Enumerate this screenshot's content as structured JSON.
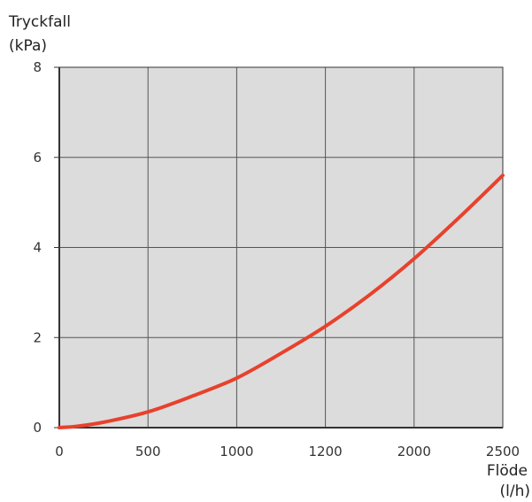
{
  "chart_data": {
    "type": "line",
    "ylabel_lines": [
      "Tryckfall",
      "(kPa)"
    ],
    "xlabel_lines": [
      "Flöde",
      "(l/h)"
    ],
    "x_tick_labels": [
      "0",
      "500",
      "1000",
      "1200",
      "2000",
      "2500"
    ],
    "y_ticks": [
      0,
      2,
      4,
      6,
      8
    ],
    "xlim": [
      0,
      2500
    ],
    "ylim": [
      0,
      8
    ],
    "grid": true,
    "colors": {
      "plot_background": "#dcdcdc",
      "grid": "#555555",
      "axes": "#333333",
      "series_line": "#e8412c"
    },
    "series": [
      {
        "x": [
          0,
          100,
          250,
          500,
          750,
          1000,
          1250,
          1500,
          1750,
          2000,
          2250,
          2500
        ],
        "y": [
          0,
          0.03,
          0.12,
          0.35,
          0.7,
          1.1,
          1.65,
          2.25,
          2.95,
          3.75,
          4.65,
          5.6
        ]
      }
    ]
  }
}
